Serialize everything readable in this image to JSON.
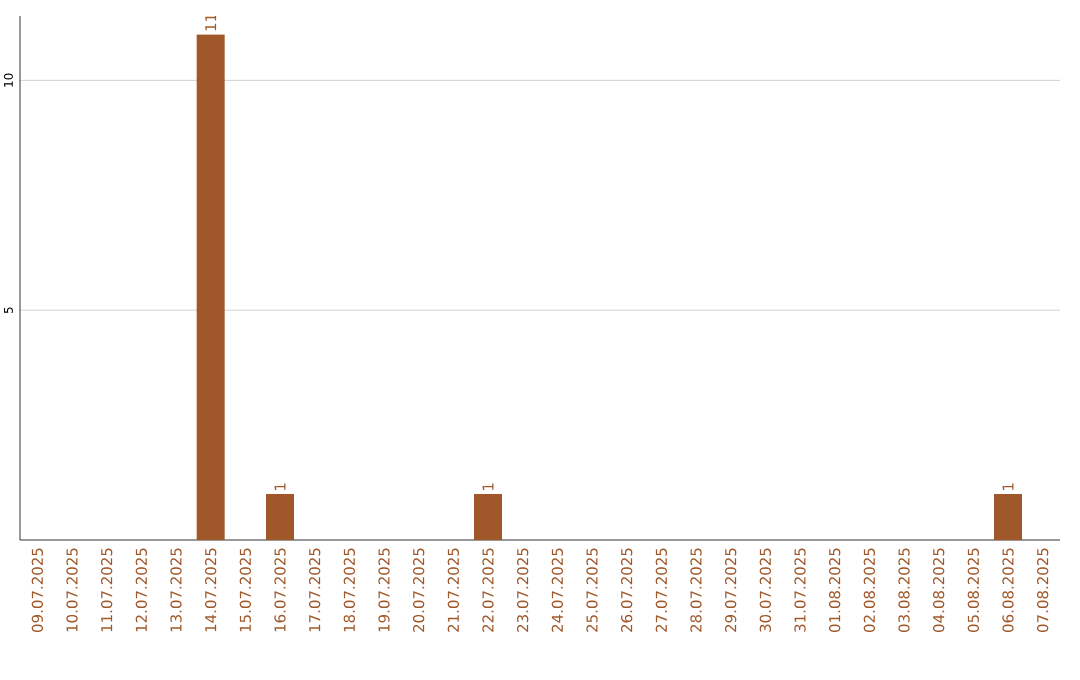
{
  "chart_data": {
    "type": "bar",
    "categories": [
      "09.07.2025",
      "10.07.2025",
      "11.07.2025",
      "12.07.2025",
      "13.07.2025",
      "14.07.2025",
      "15.07.2025",
      "16.07.2025",
      "17.07.2025",
      "18.07.2025",
      "19.07.2025",
      "20.07.2025",
      "21.07.2025",
      "22.07.2025",
      "23.07.2025",
      "24.07.2025",
      "25.07.2025",
      "26.07.2025",
      "27.07.2025",
      "28.07.2025",
      "29.07.2025",
      "30.07.2025",
      "31.07.2025",
      "01.08.2025",
      "02.08.2025",
      "03.08.2025",
      "04.08.2025",
      "05.08.2025",
      "06.08.2025",
      "07.08.2025"
    ],
    "values": [
      0,
      0,
      0,
      0,
      0,
      11,
      0,
      1,
      0,
      0,
      0,
      0,
      0,
      1,
      0,
      0,
      0,
      0,
      0,
      0,
      0,
      0,
      0,
      0,
      0,
      0,
      0,
      0,
      1,
      0
    ],
    "value_labels": [
      null,
      null,
      null,
      null,
      null,
      "11",
      null,
      "1",
      null,
      null,
      null,
      null,
      null,
      "1",
      null,
      null,
      null,
      null,
      null,
      null,
      null,
      null,
      null,
      null,
      null,
      null,
      null,
      null,
      "1",
      null
    ],
    "color": "#a0582a",
    "ylim": [
      0,
      11.4
    ],
    "yticks": [
      5,
      10
    ],
    "grid": "y"
  }
}
